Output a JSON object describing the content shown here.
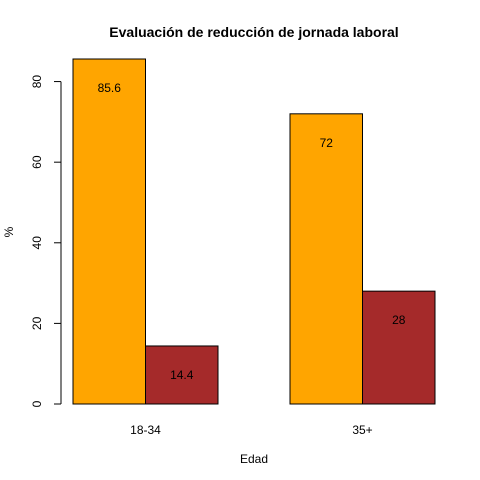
{
  "chart_data": {
    "type": "bar",
    "title": "Evaluación de reducción de jornada laboral",
    "xlabel": "Edad",
    "ylabel": "%",
    "categories": [
      "18-34",
      "35+"
    ],
    "series": [
      {
        "color": "#FFA500",
        "values": [
          85.6,
          72
        ]
      },
      {
        "color": "#A52A2A",
        "values": [
          14.4,
          28
        ]
      }
    ],
    "data_labels": [
      [
        "85.6",
        "14.4"
      ],
      [
        "72",
        "28"
      ]
    ],
    "yticks": [
      0,
      20,
      40,
      60,
      80
    ],
    "ylim": [
      0,
      85.6
    ],
    "grid": false,
    "legend": "none"
  }
}
